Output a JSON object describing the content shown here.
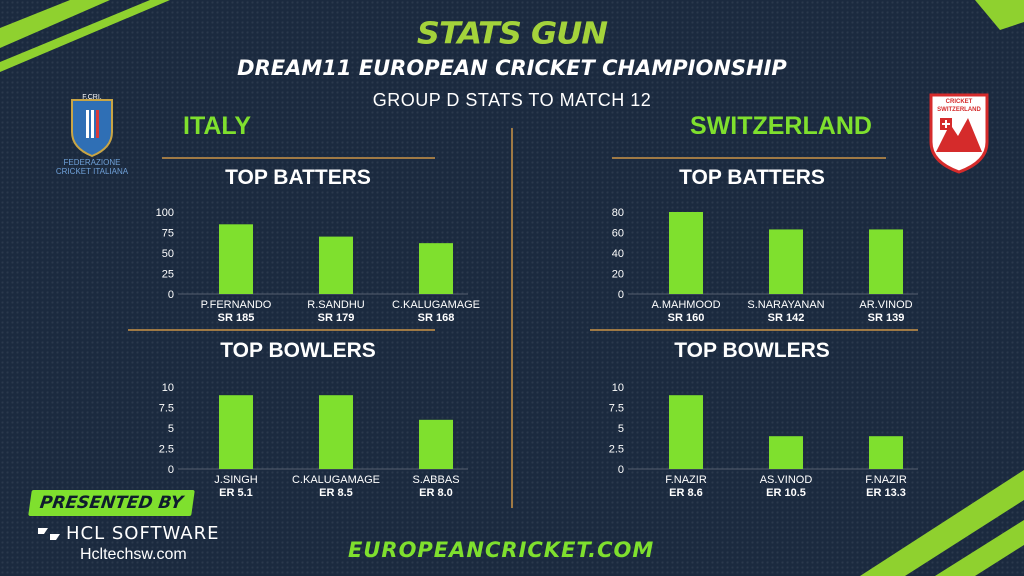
{
  "header": {
    "brand": "STATS GUN",
    "event": "DREAM11 EUROPEAN CRICKET CHAMPIONSHIP",
    "subtitle": "GROUP D STATS TO MATCH 12"
  },
  "teams": {
    "left": {
      "name": "ITALY",
      "logo_text": "FEDERAZIONE CRICKET ITALIANA",
      "logo_abbr": "F.CRI."
    },
    "right": {
      "name": "SWITZERLAND",
      "logo_text_top": "CRICKET",
      "logo_text_main": "SWITZERLAND"
    }
  },
  "sections": {
    "top_batters": "TOP BATTERS",
    "top_bowlers": "TOP BOWLERS"
  },
  "footer": {
    "presented_by": "PRESENTED BY",
    "sponsor": "HCL SOFTWARE",
    "sponsor_url": "Hcltechsw.com",
    "site": "EUROPEANCRICKET.COM"
  },
  "colors": {
    "background": "#1b2a3f",
    "bar": "#7fe02e",
    "accent": "#a4d33b",
    "rule": "#a07a45"
  },
  "chart_data": [
    {
      "id": "italy_batters",
      "type": "bar",
      "title": "TOP BATTERS",
      "categories": [
        "P.FERNANDO",
        "R.SANDHU",
        "C.KALUGAMAGE"
      ],
      "sublabels": [
        "SR 185",
        "SR 179",
        "SR 168"
      ],
      "values": [
        85,
        70,
        62
      ],
      "ylim": [
        0,
        100
      ],
      "yticks": [
        0,
        25,
        50,
        75,
        100
      ],
      "grid": false
    },
    {
      "id": "italy_bowlers",
      "type": "bar",
      "title": "TOP BOWLERS",
      "categories": [
        "J.SINGH",
        "C.KALUGAMAGE",
        "S.ABBAS"
      ],
      "sublabels": [
        "ER 5.1",
        "ER 8.5",
        "ER 8.0"
      ],
      "values": [
        9,
        9,
        6
      ],
      "ylim": [
        0,
        10
      ],
      "yticks": [
        0,
        2.5,
        5,
        7.5,
        10
      ],
      "grid": false
    },
    {
      "id": "swiss_batters",
      "type": "bar",
      "title": "TOP BATTERS",
      "categories": [
        "A.MAHMOOD",
        "S.NARAYANAN",
        "AR.VINOD"
      ],
      "sublabels": [
        "SR 160",
        "SR 142",
        "SR 139"
      ],
      "values": [
        80,
        63,
        63
      ],
      "ylim": [
        0,
        80
      ],
      "yticks": [
        0,
        20,
        40,
        60,
        80
      ],
      "grid": false
    },
    {
      "id": "swiss_bowlers",
      "type": "bar",
      "title": "TOP BOWLERS",
      "categories": [
        "F.NAZIR",
        "AS.VINOD",
        "F.NAZIR"
      ],
      "sublabels": [
        "ER 8.6",
        "ER 10.5",
        "ER 13.3"
      ],
      "values": [
        9,
        4,
        4
      ],
      "ylim": [
        0,
        10
      ],
      "yticks": [
        0,
        2.5,
        5,
        7.5,
        10
      ],
      "grid": false
    }
  ]
}
